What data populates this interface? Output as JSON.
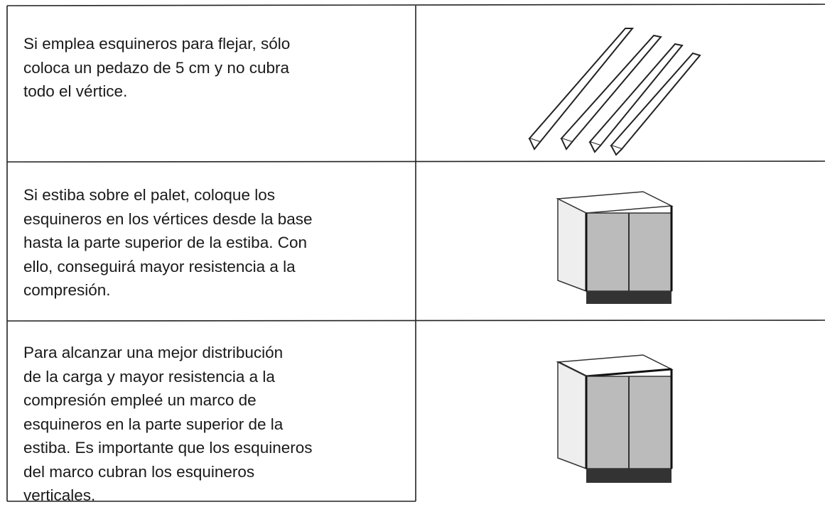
{
  "table": {
    "rows": [
      {
        "lines": [
          "Si emplea esquineros para flejar, sólo",
          "coloca un pedazo de 5 cm y no cubra",
          "todo el vértice."
        ]
      },
      {
        "lines": [
          "Si estiba sobre el palet, coloque los",
          "esquineros en los vértices desde la base",
          "hasta la parte superior de la estiba. Con",
          "ello, conseguirá mayor resistencia a la",
          "compresión."
        ]
      },
      {
        "lines": [
          "Para alcanzar una mejor distribución",
          "de la carga y mayor resistencia a la",
          "compresión empleé un marco de",
          "esquineros en la parte superior de la",
          "estiba. Es importante que los esquineros",
          "del marco cubran los esquineros",
          "verticales."
        ]
      }
    ]
  }
}
